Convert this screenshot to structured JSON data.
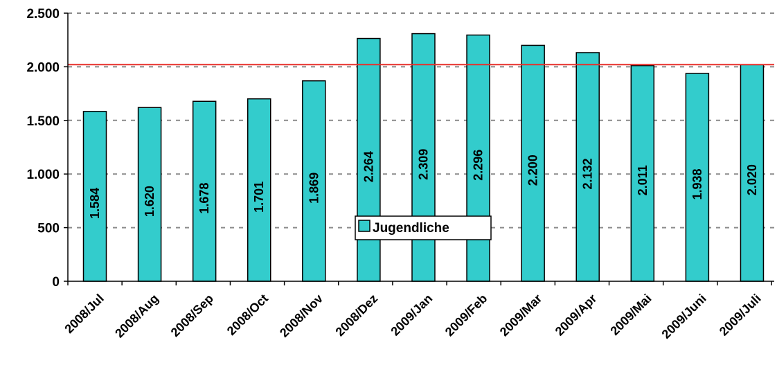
{
  "chart_data": {
    "type": "bar",
    "categories": [
      "2008/Jul",
      "2008/Aug",
      "2008/Sep",
      "2008/Oct",
      "2008/Nov",
      "2008/Dez",
      "2009/Jan",
      "2009/Feb",
      "2009/Mar",
      "2009/Apr",
      "2009/Mai",
      "2009/Juni",
      "2009/Juli"
    ],
    "series": [
      {
        "name": "Jugendliche",
        "values": [
          1584,
          1620,
          1678,
          1701,
          1869,
          2264,
          2309,
          2296,
          2200,
          2132,
          2011,
          1938,
          2020
        ],
        "value_labels": [
          "1.584",
          "1.620",
          "1.678",
          "1.701",
          "1.869",
          "2.264",
          "2.309",
          "2.296",
          "2.200",
          "2.132",
          "2.011",
          "1.938",
          "2.020"
        ]
      }
    ],
    "yticks": [
      0,
      500,
      1000,
      1500,
      2000,
      2500
    ],
    "ytick_labels": [
      "0",
      "500",
      "1.000",
      "1.500",
      "2.000",
      "2.500"
    ],
    "ylim": [
      0,
      2500
    ],
    "reference_line": 2020,
    "grid": "horizontal dashed",
    "legend_position": "center",
    "title": "",
    "xlabel": "",
    "ylabel": ""
  },
  "colors": {
    "bar_fill": "#33CCCC",
    "bar_stroke": "#000000",
    "reference_line": "#E8302C",
    "grid": "#8C8C8C"
  }
}
